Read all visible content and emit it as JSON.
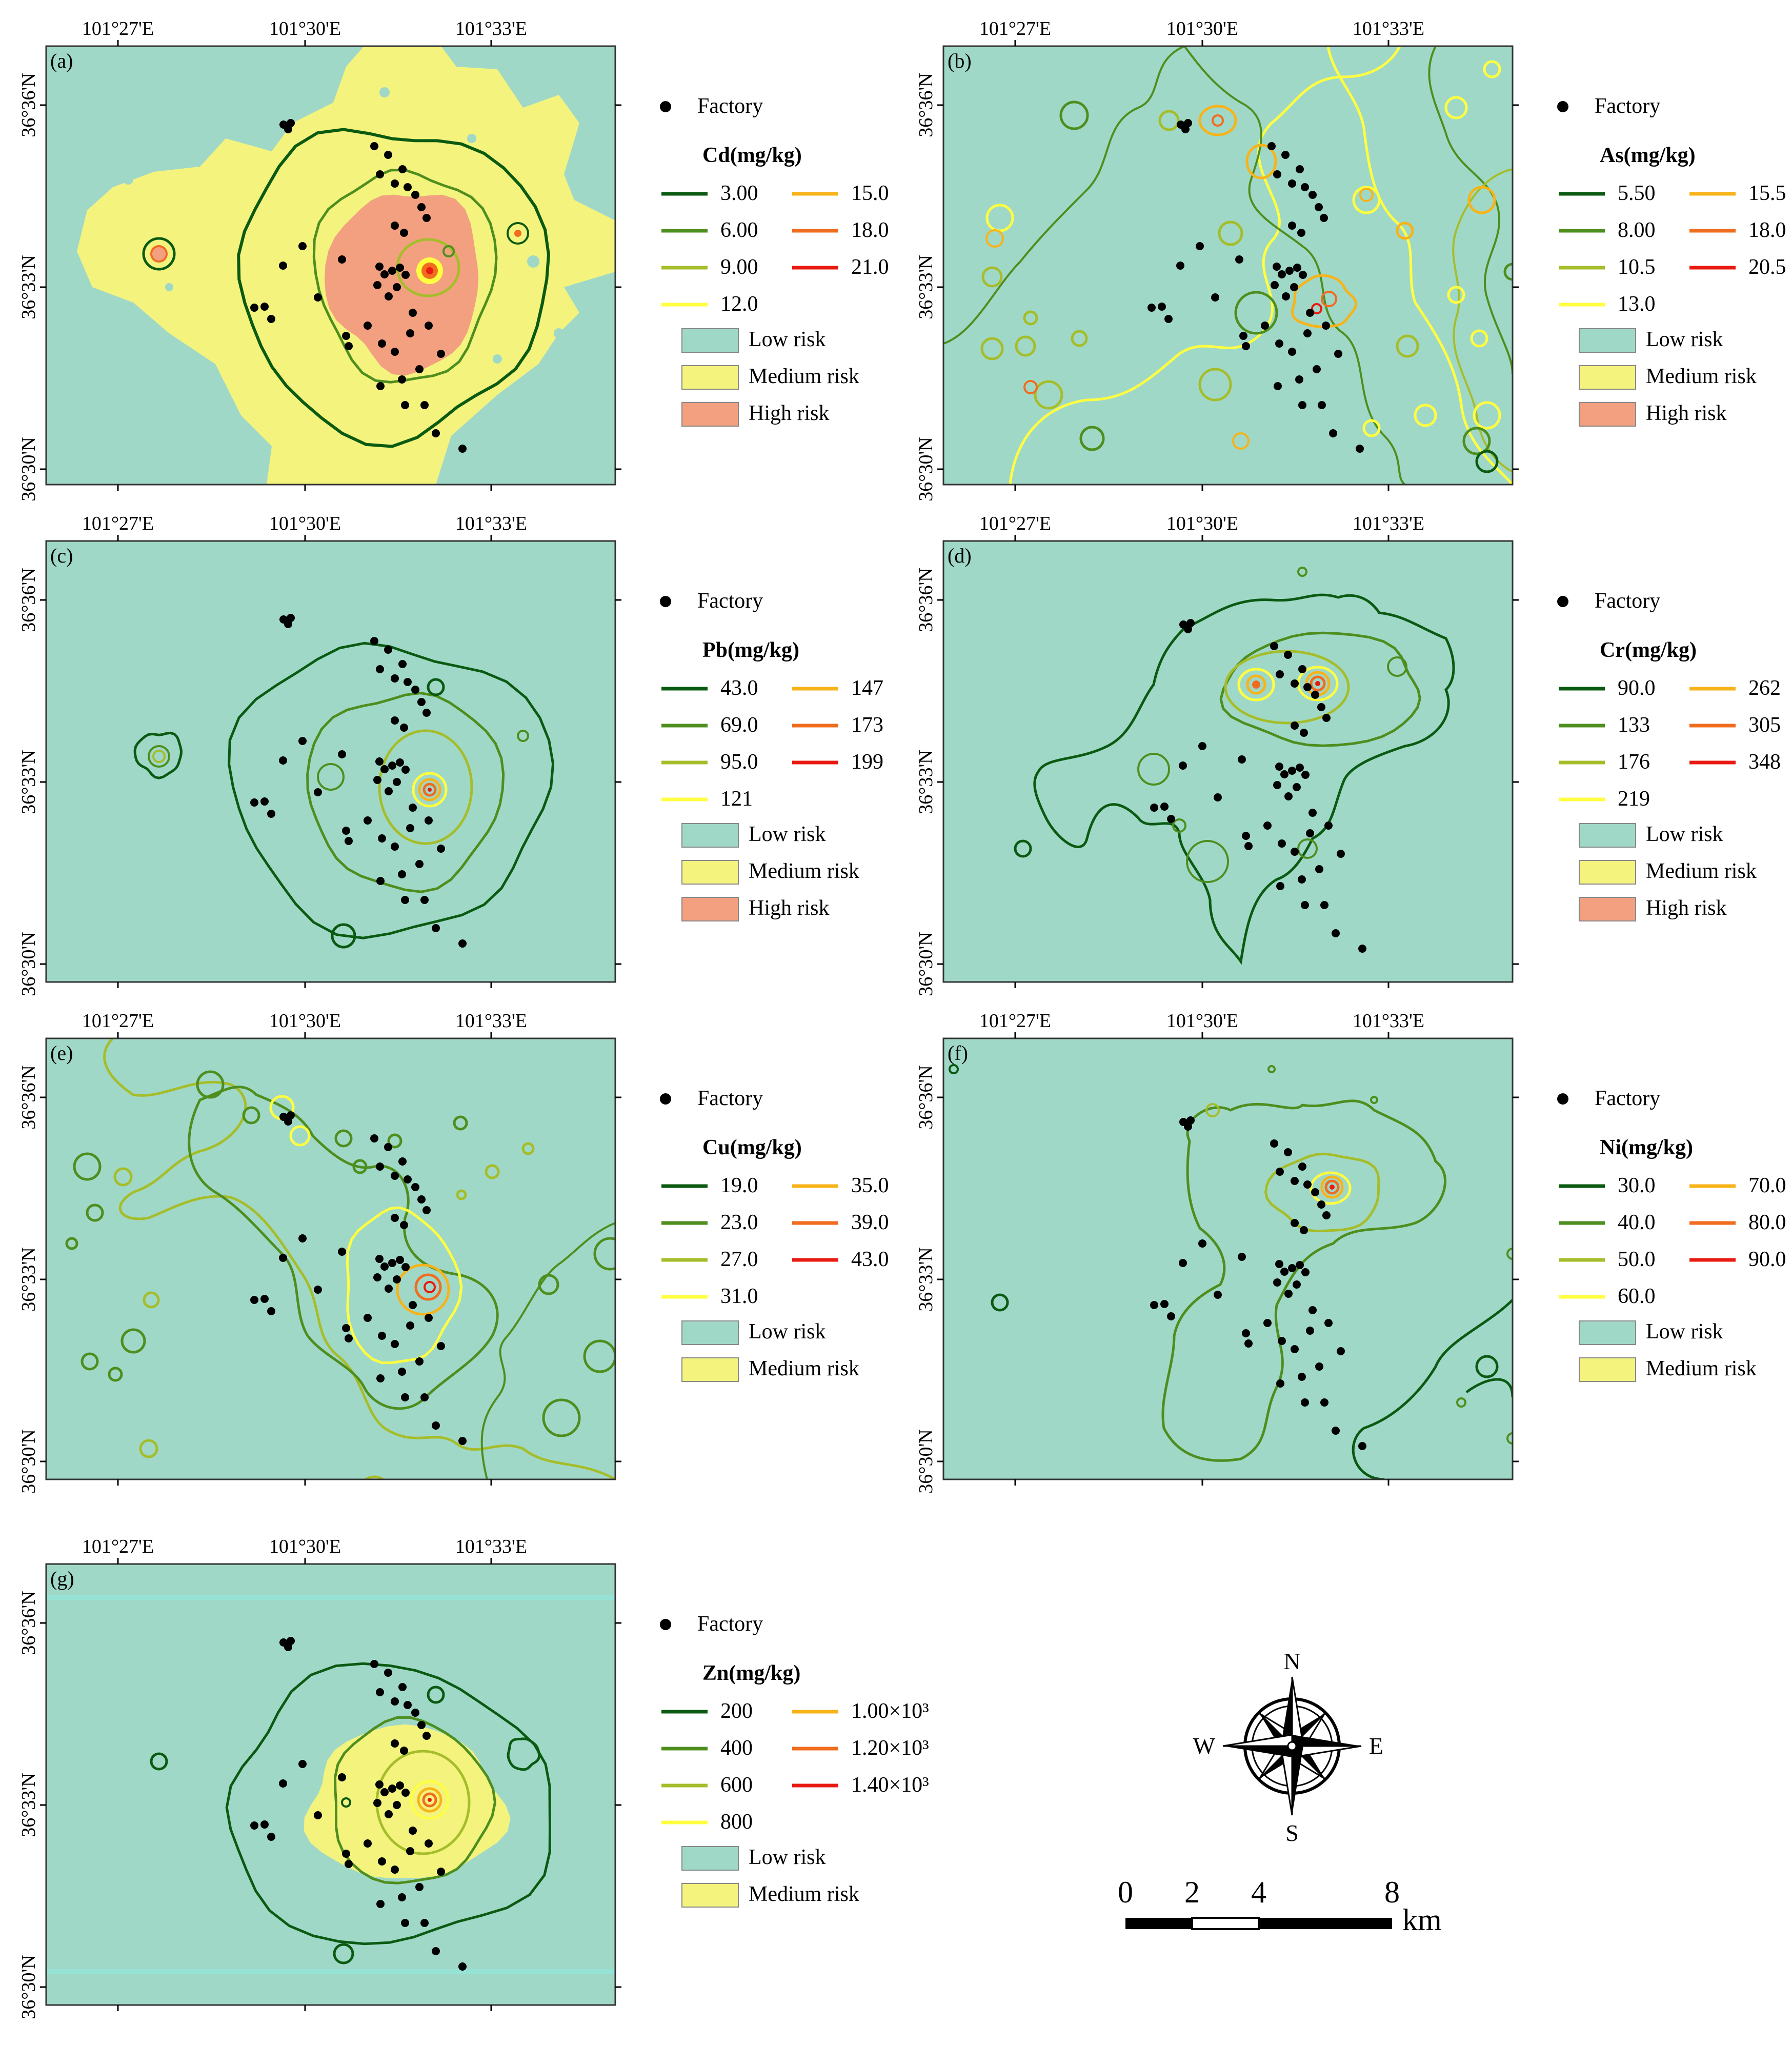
{
  "colors": {
    "low": "#a0d8c8",
    "medium": "#f3f37e",
    "high": "#f2a080",
    "frame": "#333333",
    "dot": "#000000",
    "contour": [
      "#0b5a12",
      "#4e8e1e",
      "#a5bd2a",
      "#ffff40",
      "#f7b318",
      "#f06c1e",
      "#e81a12"
    ]
  },
  "axis_labels": {
    "lon": [
      "101°27'E",
      "101°30'E",
      "101°33'E"
    ],
    "lat": [
      "36°36'N",
      "36°33'N",
      "36°30'N"
    ]
  },
  "legend_common": {
    "factory": "Factory",
    "low": "Low risk",
    "medium": "Medium risk",
    "high": "High risk"
  },
  "panels": [
    {
      "id": "a",
      "label": "(a)",
      "legend_title": "Cd(mg/kg)",
      "levels": [
        "3.00",
        "6.00",
        "9.00",
        "12.0",
        "15.0",
        "18.0",
        "21.0"
      ],
      "risk_classes": [
        "low",
        "medium",
        "high"
      ]
    },
    {
      "id": "b",
      "label": "(b)",
      "legend_title": "As(mg/kg)",
      "levels": [
        "5.50",
        "8.00",
        "10.5",
        "13.0",
        "15.5",
        "18.0",
        "20.5"
      ],
      "risk_classes": [
        "low",
        "medium",
        "high"
      ]
    },
    {
      "id": "c",
      "label": "(c)",
      "legend_title": "Pb(mg/kg)",
      "levels": [
        "43.0",
        "69.0",
        "95.0",
        "121",
        "147",
        "173",
        "199"
      ],
      "risk_classes": [
        "low",
        "medium",
        "high"
      ]
    },
    {
      "id": "d",
      "label": "(d)",
      "legend_title": "Cr(mg/kg)",
      "levels": [
        "90.0",
        "133",
        "176",
        "219",
        "262",
        "305",
        "348"
      ],
      "risk_classes": [
        "low",
        "medium",
        "high"
      ]
    },
    {
      "id": "e",
      "label": "(e)",
      "legend_title": "Cu(mg/kg)",
      "levels": [
        "19.0",
        "23.0",
        "27.0",
        "31.0",
        "35.0",
        "39.0",
        "43.0"
      ],
      "risk_classes": [
        "low",
        "medium"
      ]
    },
    {
      "id": "f",
      "label": "(f)",
      "legend_title": "Ni(mg/kg)",
      "levels": [
        "30.0",
        "40.0",
        "50.0",
        "60.0",
        "70.0",
        "80.0",
        "90.0"
      ],
      "risk_classes": [
        "low",
        "medium"
      ]
    },
    {
      "id": "g",
      "label": "(g)",
      "legend_title": "Zn(mg/kg)",
      "levels": [
        "200",
        "400",
        "600",
        "800",
        "1.00×10³",
        "1.20×10³",
        "1.40×10³"
      ],
      "risk_classes": [
        "low",
        "medium"
      ]
    }
  ],
  "compass": {
    "n": "N",
    "s": "S",
    "e": "E",
    "w": "W"
  },
  "scalebar": {
    "ticks": [
      "0",
      "2",
      "4",
      "8"
    ],
    "unit": "km"
  }
}
